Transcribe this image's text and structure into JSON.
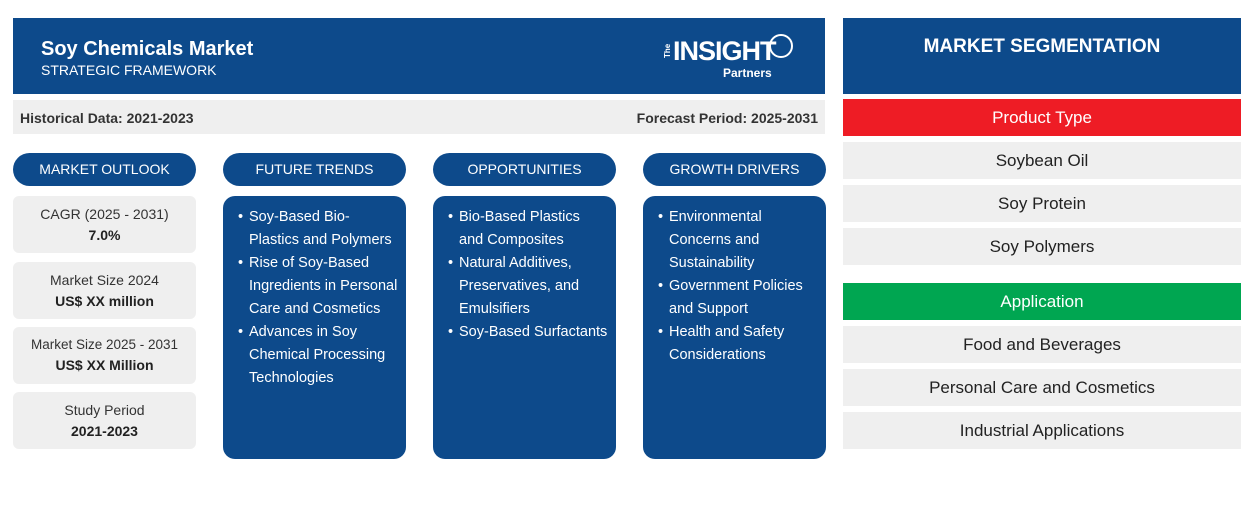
{
  "header": {
    "title": "Soy Chemicals Market",
    "subtitle": "STRATEGIC FRAMEWORK",
    "logo": {
      "the": "The",
      "insight": "INSIGHT",
      "partners": "Partners"
    }
  },
  "period": {
    "historical": "Historical Data: 2021-2023",
    "forecast": "Forecast Period: 2025-2031"
  },
  "columns": {
    "outlook": "MARKET OUTLOOK",
    "trends": "FUTURE TRENDS",
    "opportunities": "OPPORTUNITIES",
    "drivers": "GROWTH DRIVERS"
  },
  "outlook": [
    {
      "label": "CAGR (2025 - 2031)",
      "value": "7.0%"
    },
    {
      "label": "Market Size 2024",
      "value": "US$ XX million"
    },
    {
      "label": "Market Size 2025 - 2031",
      "value": "US$ XX Million"
    },
    {
      "label": "Study Period",
      "value": "2021-2023"
    }
  ],
  "trends": [
    "Soy-Based Bio-Plastics and Polymers",
    "Rise of Soy-Based Ingredients in Personal Care and Cosmetics",
    "Advances in Soy Chemical Processing Technologies"
  ],
  "opportunities": [
    "Bio-Based Plastics and Composites",
    "Natural Additives, Preservatives, and Emulsifiers",
    "Soy-Based Surfactants"
  ],
  "drivers": [
    "Environmental Concerns and Sustainability",
    "Government Policies and Support",
    "Health and Safety Considerations"
  ],
  "segmentation": {
    "title": "MARKET SEGMENTATION",
    "product_type": {
      "label": "Product Type",
      "color": "#ee1c25",
      "items": [
        "Soybean Oil",
        "Soy Protein",
        "Soy Polymers"
      ]
    },
    "application": {
      "label": "Application",
      "color": "#00a651",
      "items": [
        "Food and Beverages",
        "Personal Care and Cosmetics",
        "Industrial Applications"
      ]
    }
  }
}
